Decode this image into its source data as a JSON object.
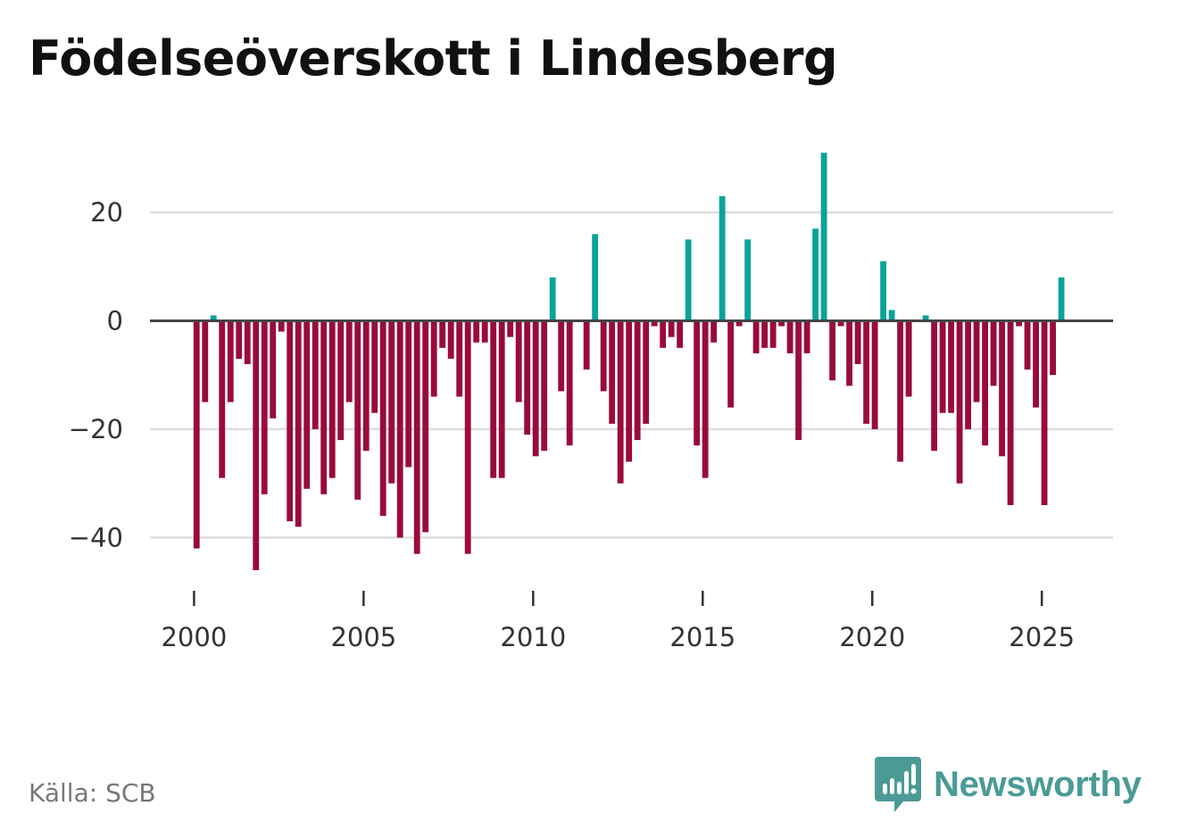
{
  "title": "Födelseöverskott i Lindesberg",
  "source": "Källa: SCB",
  "brand": "Newsworthy",
  "colors": {
    "positive": "#0aa39a",
    "negative": "#990a3d",
    "grid": "#dddddd",
    "zero": "#444444",
    "brand": "#4a9b96"
  },
  "chart_data": {
    "type": "bar",
    "title": "Födelseöverskott i Lindesberg",
    "xlabel": "",
    "ylabel": "",
    "ylim": [
      -48,
      33
    ],
    "xlim": [
      1998.7,
      2027.1
    ],
    "yticks": [
      20,
      0,
      -20,
      -40
    ],
    "ytick_labels": [
      "20",
      "0",
      "−20",
      "−40"
    ],
    "xticks": [
      2000,
      2005,
      2010,
      2015,
      2020,
      2025
    ],
    "xtick_labels": [
      "2000",
      "2005",
      "2010",
      "2015",
      "2020",
      "2025"
    ],
    "start": 2000.0,
    "step": 0.25,
    "series": [
      {
        "name": "Födelseöverskott",
        "values": [
          -42,
          -15,
          1,
          -29,
          -15,
          -7,
          -8,
          -46,
          -32,
          -18,
          -2,
          -37,
          -38,
          -31,
          -20,
          -32,
          -29,
          -22,
          -15,
          -33,
          -24,
          -17,
          -36,
          -30,
          -40,
          -27,
          -43,
          -39,
          -14,
          -5,
          -7,
          -14,
          -43,
          -4,
          -4,
          -29,
          -29,
          -3,
          -15,
          -21,
          -25,
          -24,
          8,
          -13,
          -23,
          0,
          -9,
          16,
          -13,
          -19,
          -30,
          -26,
          -22,
          -19,
          -1,
          -5,
          -3,
          -5,
          15,
          -23,
          -29,
          -4,
          23,
          -16,
          -1,
          15,
          -6,
          -5,
          -5,
          -1,
          -6,
          -22,
          -6,
          17,
          31,
          -11,
          -1,
          -12,
          -8,
          -19,
          -20,
          11,
          2,
          -26,
          -14,
          0,
          1,
          -24,
          -17,
          -17,
          -30,
          -20,
          -15,
          -23,
          -12,
          -25,
          -34,
          -1,
          -9,
          -16,
          -34,
          -10,
          8
        ]
      }
    ]
  }
}
